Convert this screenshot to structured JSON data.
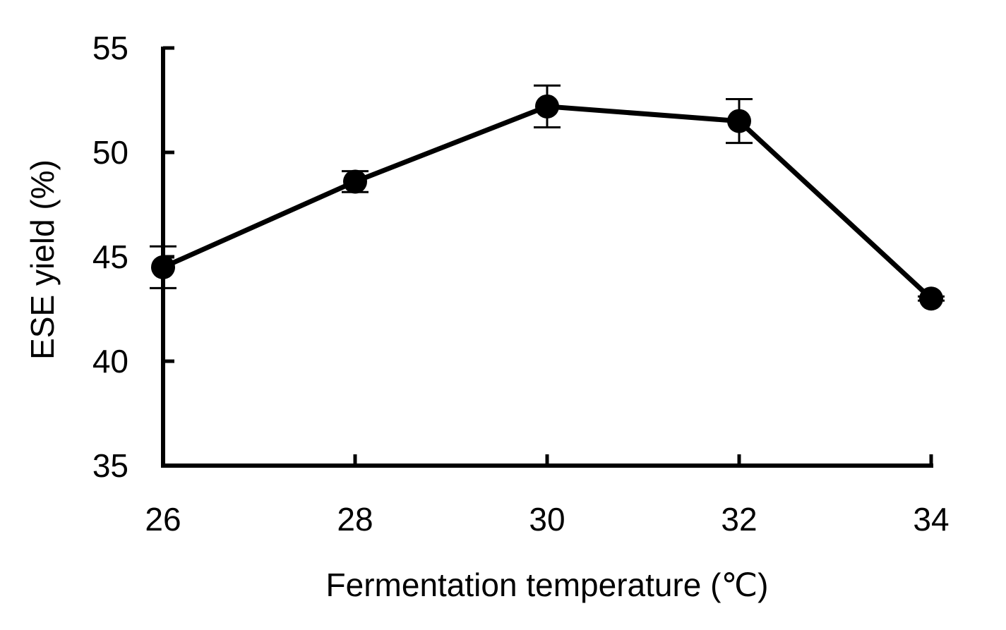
{
  "chart_data": {
    "type": "line",
    "title": "",
    "xlabel": "Fermentation temperature (℃)",
    "ylabel": "ESE yield (%)",
    "x": [
      26,
      28,
      30,
      32,
      34
    ],
    "xticks": [
      "26",
      "28",
      "30",
      "32",
      "34"
    ],
    "yticks": [
      "35",
      "40",
      "45",
      "50",
      "55"
    ],
    "ylim": [
      35,
      55
    ],
    "xlim": [
      26,
      34
    ],
    "grid": false,
    "legend": null,
    "series": [
      {
        "name": "ESE yield",
        "values": [
          44.5,
          48.6,
          52.2,
          51.5,
          43.0
        ],
        "errors": [
          1.0,
          0.5,
          1.0,
          1.05,
          0.1
        ],
        "marker": "filled-circle",
        "color": "#000000"
      }
    ]
  }
}
